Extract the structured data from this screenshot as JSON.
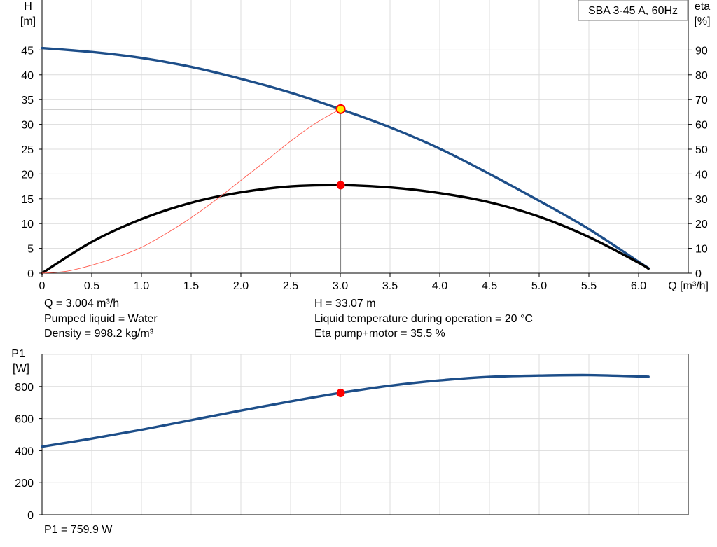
{
  "chart_data": [
    {
      "type": "line",
      "title": "SBA 3-45 A, 60Hz",
      "x_label": "Q [m³/h]",
      "y_label": [
        "H",
        "[m]"
      ],
      "y2_label": [
        "eta",
        "[%]"
      ],
      "xlim": [
        0,
        6.5
      ],
      "ylim": [
        0,
        50
      ],
      "y2lim": [
        0,
        100
      ],
      "x_ticks": [
        "0",
        "0.5",
        "1.0",
        "1.5",
        "2.0",
        "2.5",
        "3.0",
        "3.5",
        "4.0",
        "4.5",
        "5.0",
        "5.5",
        "6.0"
      ],
      "y_ticks": [
        "0",
        "5",
        "10",
        "15",
        "20",
        "25",
        "30",
        "35",
        "40",
        "45"
      ],
      "y2_ticks": [
        "0",
        "10",
        "20",
        "30",
        "40",
        "50",
        "60",
        "70",
        "80",
        "90"
      ],
      "grid": true,
      "series": [
        {
          "axis": "left",
          "color": "#1d4e89",
          "x": [
            0,
            0.5,
            1.0,
            1.5,
            2.0,
            2.5,
            3.0,
            3.5,
            4.0,
            4.5,
            5.0,
            5.5,
            6.0,
            6.1
          ],
          "values": [
            45.4,
            44.6,
            43.4,
            41.6,
            39.2,
            36.4,
            33.07,
            29.4,
            25.1,
            20.0,
            14.6,
            8.9,
            2.3,
            1.0
          ]
        },
        {
          "axis": "right",
          "color": "#000000",
          "x": [
            0,
            0.5,
            1.0,
            1.5,
            2.0,
            2.5,
            3.0,
            3.5,
            4.0,
            4.5,
            5.0,
            5.5,
            6.0,
            6.1
          ],
          "values": [
            0,
            12.6,
            21.8,
            28.4,
            32.6,
            35.0,
            35.5,
            34.6,
            32.3,
            28.6,
            22.8,
            14.6,
            4.2,
            1.8
          ]
        },
        {
          "axis": "left",
          "color": "#ff5a4e",
          "x": [
            0,
            0.25,
            0.5,
            0.75,
            1.0,
            1.25,
            1.5,
            1.75,
            2.0,
            2.25,
            2.5,
            2.75,
            3.0
          ],
          "values": [
            0,
            0.4,
            1.6,
            3.2,
            5.2,
            8.0,
            11.2,
            14.8,
            18.7,
            22.6,
            26.6,
            30.2,
            33.07
          ]
        }
      ],
      "operating_point": {
        "q": 3.004,
        "h": 33.07,
        "eta": 35.5
      },
      "colors": {
        "duty_point_fill": "#ffee00",
        "duty_point_stroke": "#ff0000",
        "marker": "#ff0000"
      }
    },
    {
      "type": "line",
      "y_label": [
        "P1",
        "[W]"
      ],
      "xlim": [
        0,
        6.5
      ],
      "ylim": [
        0,
        1000
      ],
      "y_ticks": [
        "0",
        "200",
        "400",
        "600",
        "800"
      ],
      "grid": true,
      "series": [
        {
          "color": "#1d4e89",
          "x": [
            0,
            0.5,
            1.0,
            1.5,
            2.0,
            2.5,
            3.0,
            3.5,
            4.0,
            4.5,
            5.0,
            5.5,
            6.0,
            6.1
          ],
          "values": [
            425,
            475,
            530,
            590,
            650,
            707,
            760,
            805,
            838,
            860,
            868,
            871,
            863,
            861
          ]
        }
      ],
      "operating_point": {
        "q": 3.004,
        "p1": 759.9
      }
    }
  ],
  "info": {
    "q": "Q = 3.004 m³/h",
    "h": "H = 33.07 m",
    "liquid": "Pumped liquid = Water",
    "temperature": "Liquid temperature during operation = 20 °C",
    "density": "Density = 998.2 kg/m³",
    "eta": "Eta pump+motor = 35.5 %",
    "p1": "P1 = 759.9 W"
  }
}
